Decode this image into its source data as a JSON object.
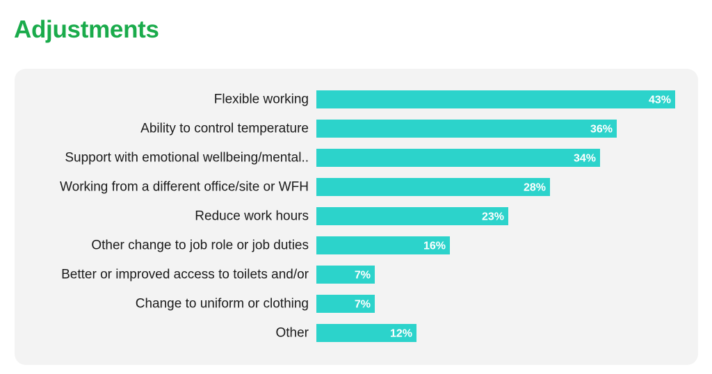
{
  "page": {
    "title": "Adjustments",
    "title_color": "#1aab4b",
    "bar_color": "#2cd3cb"
  },
  "chart_data": {
    "type": "bar",
    "orientation": "horizontal",
    "categories": [
      "Flexible working",
      "Ability to control temperature",
      "Support with emotional wellbeing/mental..",
      "Working from a different office/site or WFH",
      "Reduce work hours",
      "Other change to job role or job duties",
      "Better or improved access to toilets and/or",
      "Change to uniform or clothing",
      "Other"
    ],
    "values": [
      43,
      36,
      34,
      28,
      23,
      16,
      7,
      7,
      12
    ],
    "value_labels": [
      "43%",
      "36%",
      "34%",
      "28%",
      "23%",
      "16%",
      "7%",
      "7%",
      "12%"
    ],
    "unit": "%",
    "xlim": [
      0,
      43
    ],
    "grid": false,
    "legend": false
  }
}
